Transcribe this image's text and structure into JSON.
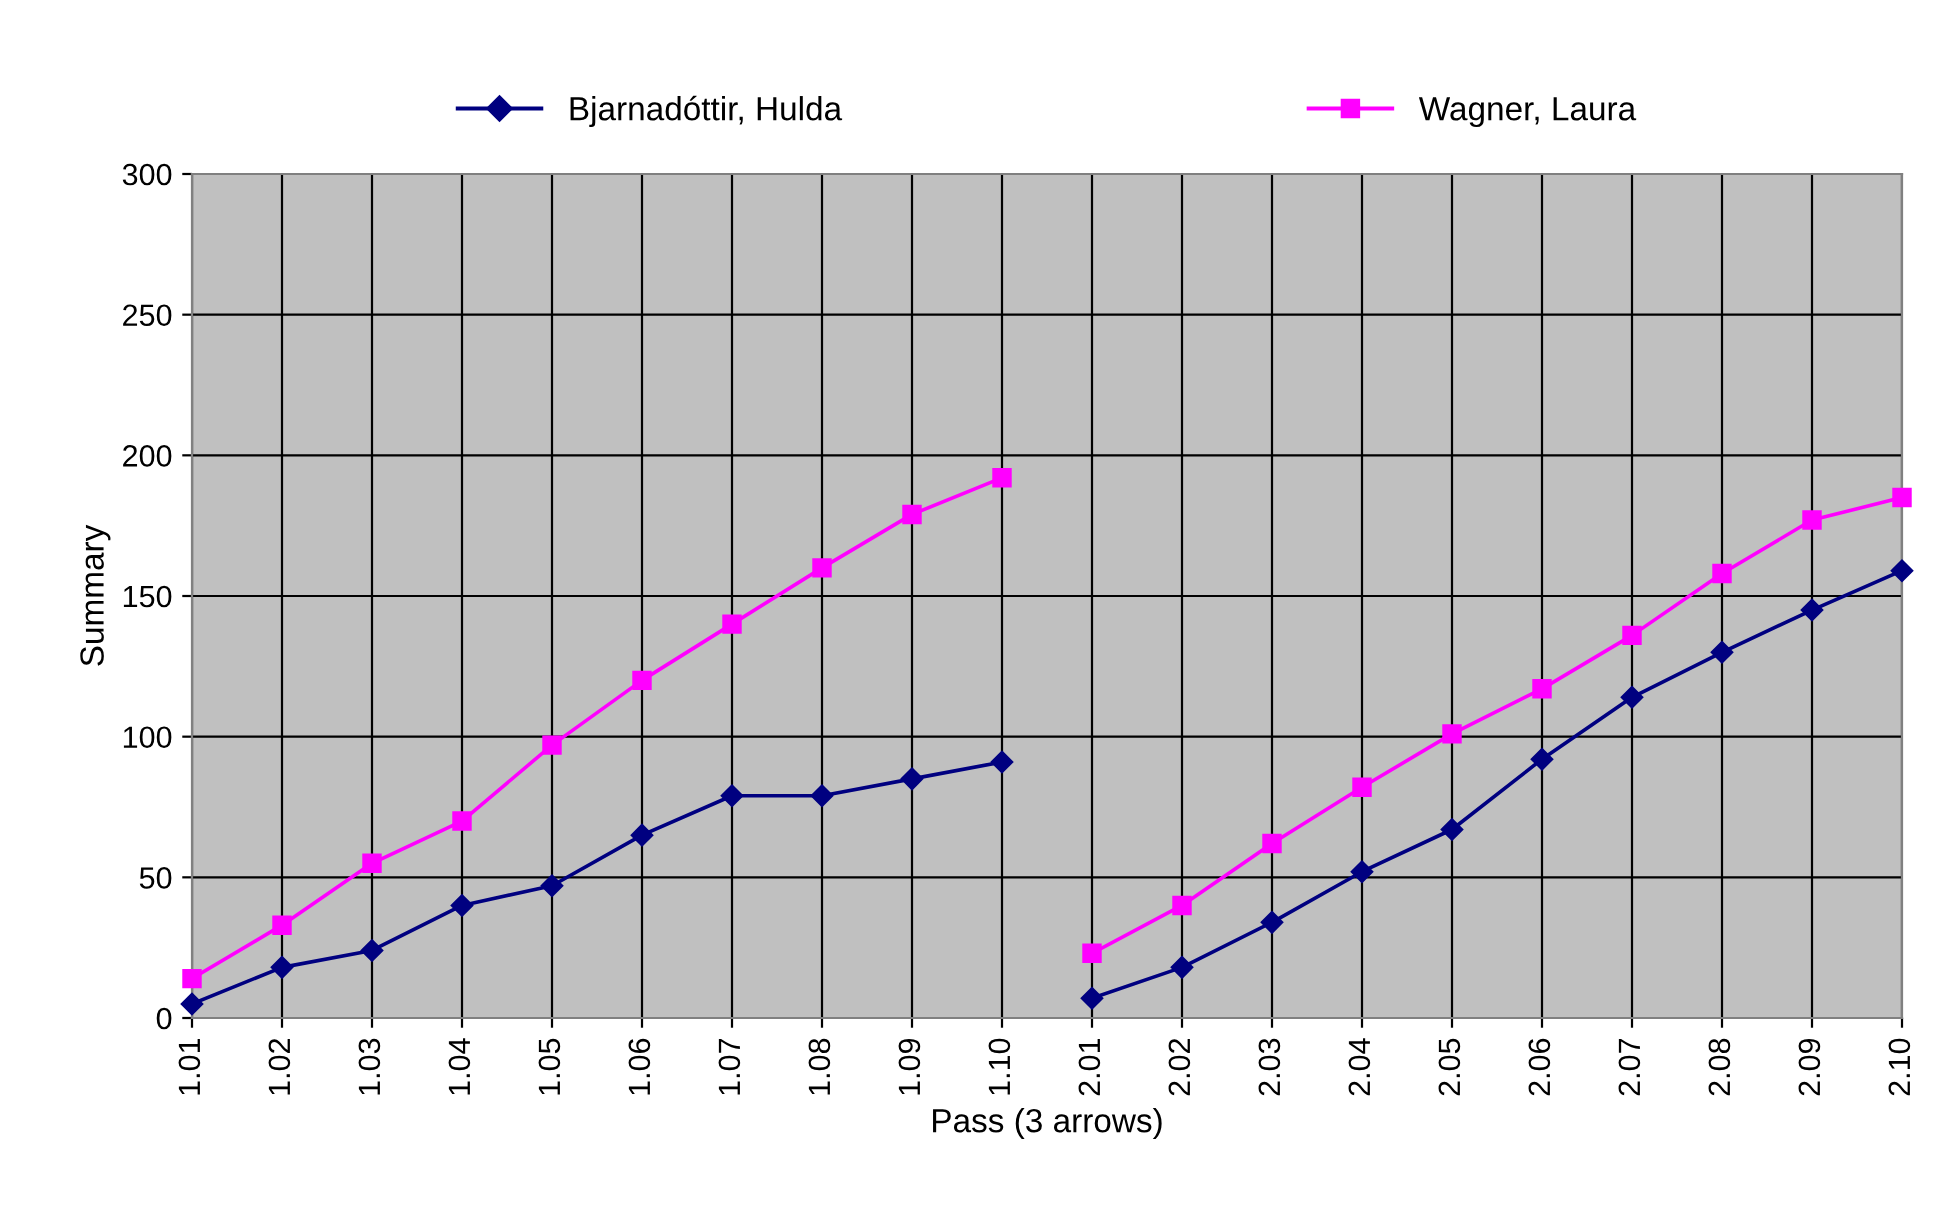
{
  "chart_data": {
    "type": "line",
    "xlabel": "Pass (3 arrows)",
    "ylabel": "Summary",
    "categories": [
      "1.01",
      "1.02",
      "1.03",
      "1.04",
      "1.05",
      "1.06",
      "1.07",
      "1.08",
      "1.09",
      "1.10",
      "2.01",
      "2.02",
      "2.03",
      "2.04",
      "2.05",
      "2.06",
      "2.07",
      "2.08",
      "2.09",
      "2.10"
    ],
    "series": [
      {
        "name": "Bjarnadóttir, Hulda",
        "color": "#000080",
        "marker": "diamond",
        "values": [
          5,
          18,
          24,
          40,
          47,
          65,
          79,
          79,
          85,
          91,
          null,
          null,
          null,
          null,
          null,
          null,
          null,
          null,
          null,
          null
        ]
      },
      {
        "color": "#000080",
        "marker": "diamond",
        "values": [
          null,
          null,
          null,
          null,
          null,
          null,
          null,
          null,
          null,
          null,
          7,
          18,
          34,
          52,
          67,
          92,
          114,
          130,
          145,
          159
        ]
      },
      {
        "name": "Wagner, Laura",
        "color": "#ff00ff",
        "marker": "square",
        "values": [
          14,
          33,
          55,
          70,
          97,
          120,
          140,
          160,
          179,
          192,
          null,
          null,
          null,
          null,
          null,
          null,
          null,
          null,
          null,
          null
        ]
      },
      {
        "color": "#ff00ff",
        "marker": "square",
        "values": [
          null,
          null,
          null,
          null,
          null,
          null,
          null,
          null,
          null,
          null,
          23,
          40,
          62,
          82,
          101,
          117,
          136,
          158,
          177,
          185
        ]
      }
    ],
    "ylim": [
      0,
      300
    ],
    "yticks": [
      0,
      50,
      100,
      150,
      200,
      250,
      300
    ],
    "grid": true,
    "legend": "top"
  }
}
